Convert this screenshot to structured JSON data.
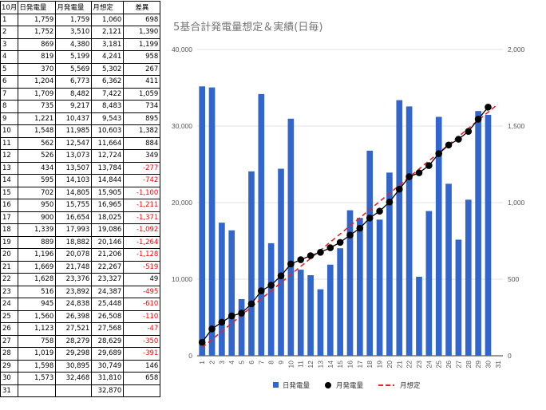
{
  "table": {
    "headers": [
      "10月",
      "日発電量",
      "月発電量",
      "月想定",
      "差異"
    ],
    "rows": [
      [
        "1",
        "1,759",
        "1,759",
        "1,060",
        "698"
      ],
      [
        "2",
        "1,752",
        "3,510",
        "2,121",
        "1,390"
      ],
      [
        "3",
        "869",
        "4,380",
        "3,181",
        "1,199"
      ],
      [
        "4",
        "819",
        "5,199",
        "4,241",
        "958"
      ],
      [
        "5",
        "370",
        "5,569",
        "5,302",
        "267"
      ],
      [
        "6",
        "1,204",
        "6,773",
        "6,362",
        "411"
      ],
      [
        "7",
        "1,709",
        "8,482",
        "7,422",
        "1,059"
      ],
      [
        "8",
        "735",
        "9,217",
        "8,483",
        "734"
      ],
      [
        "9",
        "1,221",
        "10,437",
        "9,543",
        "895"
      ],
      [
        "10",
        "1,548",
        "11,985",
        "10,603",
        "1,382"
      ],
      [
        "11",
        "562",
        "12,547",
        "11,664",
        "884"
      ],
      [
        "12",
        "526",
        "13,073",
        "12,724",
        "349"
      ],
      [
        "13",
        "434",
        "13,507",
        "13,784",
        "-277"
      ],
      [
        "14",
        "595",
        "14,103",
        "14,844",
        "-742"
      ],
      [
        "15",
        "702",
        "14,805",
        "15,905",
        "-1,100"
      ],
      [
        "16",
        "950",
        "15,755",
        "16,965",
        "-1,211"
      ],
      [
        "17",
        "900",
        "16,654",
        "18,025",
        "-1,371"
      ],
      [
        "18",
        "1,339",
        "17,993",
        "19,086",
        "-1,092"
      ],
      [
        "19",
        "889",
        "18,882",
        "20,146",
        "-1,264"
      ],
      [
        "20",
        "1,196",
        "20,078",
        "21,206",
        "-1,128"
      ],
      [
        "21",
        "1,669",
        "21,748",
        "22,267",
        "-519"
      ],
      [
        "22",
        "1,628",
        "23,376",
        "23,327",
        "49"
      ],
      [
        "23",
        "516",
        "23,892",
        "24,387",
        "-495"
      ],
      [
        "24",
        "945",
        "24,838",
        "25,448",
        "-610"
      ],
      [
        "25",
        "1,560",
        "26,398",
        "26,508",
        "-110"
      ],
      [
        "26",
        "1,123",
        "27,521",
        "27,568",
        "-47"
      ],
      [
        "27",
        "758",
        "28,279",
        "28,629",
        "-350"
      ],
      [
        "28",
        "1,019",
        "29,298",
        "29,689",
        "-391"
      ],
      [
        "29",
        "1,598",
        "30,895",
        "30,749",
        "146"
      ],
      [
        "30",
        "1,573",
        "32,468",
        "31,810",
        "658"
      ],
      [
        "31",
        "",
        "",
        "32,870",
        ""
      ]
    ]
  },
  "chart_data": {
    "type": "bar",
    "title": "5基合計発電量想定＆実績(日毎)",
    "categories": [
      "1",
      "2",
      "3",
      "4",
      "5",
      "6",
      "7",
      "8",
      "9",
      "10",
      "11",
      "12",
      "13",
      "14",
      "15",
      "16",
      "17",
      "18",
      "19",
      "20",
      "21",
      "22",
      "23",
      "24",
      "25",
      "26",
      "27",
      "28",
      "29",
      "30",
      "31"
    ],
    "y_left": {
      "min": 0,
      "max": 40000,
      "ticks": [
        "0",
        "10,000",
        "20,000",
        "30,000",
        "40,000"
      ]
    },
    "y_right": {
      "min": 0,
      "max": 2000,
      "ticks": [
        "0",
        "500",
        "1,000",
        "1,500",
        "2,000"
      ]
    },
    "grid": true,
    "legend_position": "bottom",
    "series": [
      {
        "name": "日発電量",
        "kind": "bar",
        "axis": "right",
        "color": "#3366cc",
        "values": [
          1759,
          1752,
          869,
          819,
          370,
          1204,
          1709,
          735,
          1221,
          1548,
          562,
          526,
          434,
          595,
          702,
          950,
          900,
          1339,
          889,
          1196,
          1669,
          1628,
          516,
          945,
          1560,
          1123,
          758,
          1019,
          1598,
          1573,
          null
        ]
      },
      {
        "name": "月発電量",
        "kind": "line-marker",
        "axis": "left",
        "color": "#000000",
        "values": [
          1759,
          3510,
          4380,
          5199,
          5569,
          6773,
          8482,
          9217,
          10437,
          11985,
          12547,
          13073,
          13507,
          14103,
          14805,
          15755,
          16654,
          17993,
          18882,
          20078,
          21748,
          23376,
          23892,
          24838,
          26398,
          27521,
          28279,
          29298,
          30895,
          32468,
          null
        ]
      },
      {
        "name": "月想定",
        "kind": "dashed-line",
        "axis": "left",
        "color": "#ee2222",
        "values": [
          1060,
          2121,
          3181,
          4241,
          5302,
          6362,
          7422,
          8483,
          9543,
          10603,
          11664,
          12724,
          13784,
          14844,
          15905,
          16965,
          18025,
          19086,
          20146,
          21206,
          22267,
          23327,
          24387,
          25448,
          26508,
          27568,
          28629,
          29689,
          30749,
          31810,
          32870
        ]
      }
    ]
  }
}
